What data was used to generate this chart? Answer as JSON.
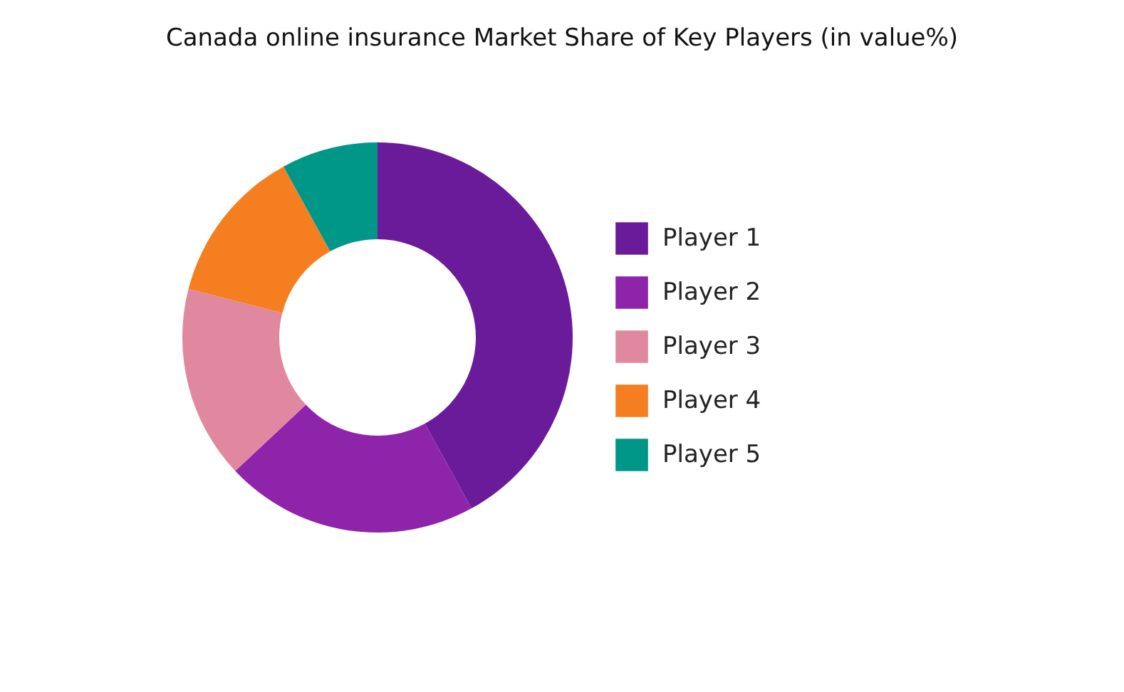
{
  "chart_data": {
    "type": "donut",
    "title": "Canada online insurance Market Share of Key Players (in value%)",
    "categories": [
      "Player 1",
      "Player 2",
      "Player 3",
      "Player 4",
      "Player 5"
    ],
    "values": [
      42,
      21,
      16,
      13,
      8
    ],
    "colors": [
      "#6a1b9a",
      "#8e24aa",
      "#e0889f",
      "#f57f20",
      "#009688"
    ],
    "legend": "right"
  }
}
